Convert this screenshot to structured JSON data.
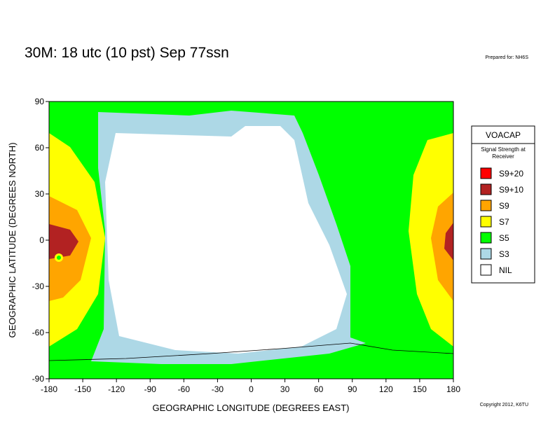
{
  "title": "30M:  18 utc (10 pst) Sep 77ssn",
  "prepared_for": "Prepared for: NH6S",
  "copyright": "Copyright 2012, K6TU",
  "map": {
    "xlabel": "GEOGRAPHIC LONGITUDE (DEGREES EAST)",
    "ylabel": "GEOGRAPHIC LATITUDE (DEGREES NORTH)",
    "xlim": [
      -180,
      180
    ],
    "xticks": [
      -180,
      -150,
      -120,
      -90,
      -60,
      -30,
      0,
      30,
      60,
      90,
      120,
      150,
      180
    ],
    "ylim": [
      -90,
      90
    ],
    "yticks": [
      -90,
      -60,
      -30,
      0,
      30,
      60,
      90
    ]
  },
  "legend": {
    "title": "VOACAP",
    "subtitle": "Signal Strength at Receiver",
    "items": [
      {
        "name": "S9+20",
        "color": "#ff0000"
      },
      {
        "name": "S9+10",
        "color": "#b22222"
      },
      {
        "name": "S9",
        "color": "#ffa500"
      },
      {
        "name": "S7",
        "color": "#ffff00"
      },
      {
        "name": "S5",
        "color": "#00ff00"
      },
      {
        "name": "S3",
        "color": "#add8e6"
      },
      {
        "name": "NIL",
        "color": "#ffffff"
      }
    ]
  }
}
